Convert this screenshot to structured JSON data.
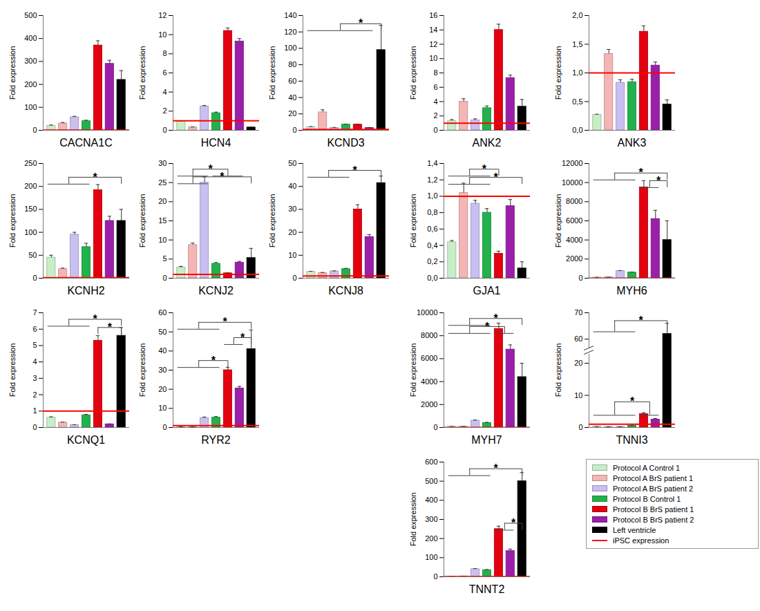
{
  "chart_data": {
    "type": "bar",
    "ylabel": "Fold expression",
    "series": [
      {
        "name": "Protocol A Control 1",
        "color": "#c8eec8"
      },
      {
        "name": "Protocol A BrS patient 1",
        "color": "#f5b5b5"
      },
      {
        "name": "Protocol A BrS patient 2",
        "color": "#c9bff0"
      },
      {
        "name": "Protocol B Control 1",
        "color": "#22b14c"
      },
      {
        "name": "Protocol B BrS patient 1",
        "color": "#e3000f"
      },
      {
        "name": "Protocol B BrS patient 2",
        "color": "#9b1fa8"
      },
      {
        "name": "Left ventricle",
        "color": "#000000"
      }
    ],
    "reference_line": {
      "name": "iPSC expression",
      "value": 1,
      "color": "#ff0000"
    },
    "panels": [
      {
        "xlabel": "CACNA1C",
        "ylim": [
          0,
          500
        ],
        "yticks": [
          0,
          100,
          200,
          300,
          400,
          500
        ],
        "values": [
          20,
          30,
          57,
          40,
          370,
          290,
          220
        ],
        "errors": [
          3,
          4,
          4,
          4,
          20,
          15,
          40
        ],
        "significance": []
      },
      {
        "xlabel": "HCN4",
        "ylim": [
          0,
          12
        ],
        "yticks": [
          0,
          2,
          4,
          6,
          8,
          10,
          12
        ],
        "values": [
          0.9,
          0.3,
          2.5,
          1.8,
          10.4,
          9.3,
          0.3
        ],
        "errors": [
          0.1,
          0.05,
          0.1,
          0.1,
          0.3,
          0.3,
          0.05
        ],
        "significance": []
      },
      {
        "xlabel": "KCND3",
        "ylim": [
          0,
          140
        ],
        "yticks": [
          0,
          20,
          40,
          60,
          80,
          100,
          120,
          140
        ],
        "values": [
          4,
          22,
          3,
          7,
          7,
          3,
          98
        ],
        "errors": [
          0.5,
          3,
          0.5,
          0.5,
          0.5,
          0.5,
          30
        ],
        "significance": [
          {
            "a": [
              0,
              5
            ],
            "b": [
              6,
              6
            ],
            "y": 130,
            "label": "*"
          }
        ]
      },
      {
        "xlabel": "ANK2",
        "ylim": [
          0,
          16
        ],
        "yticks": [
          0,
          2,
          4,
          6,
          8,
          10,
          12,
          14,
          16
        ],
        "values": [
          1.3,
          4,
          1.4,
          3.1,
          14,
          7.3,
          3.3
        ],
        "errors": [
          0.2,
          0.4,
          0.2,
          0.3,
          0.8,
          0.4,
          1
        ],
        "significance": []
      },
      {
        "xlabel": "ANK3",
        "ylim": [
          0,
          2
        ],
        "yticks": [
          {
            "value": 0,
            "label": "0,0"
          },
          {
            "value": 0.5,
            "label": "0,5"
          },
          {
            "value": 1,
            "label": "1,0"
          },
          {
            "value": 1.5,
            "label": "1,5"
          },
          {
            "value": 2,
            "label": "2,0"
          }
        ],
        "values": [
          0.27,
          1.33,
          0.83,
          0.84,
          1.72,
          1.13,
          0.45
        ],
        "errors": [
          0.01,
          0.08,
          0.05,
          0.05,
          0.1,
          0.06,
          0.08
        ],
        "significance": []
      },
      {
        "xlabel": "KCNH2",
        "ylim": [
          0,
          250
        ],
        "yticks": [
          0,
          50,
          100,
          150,
          200,
          250
        ],
        "values": [
          45,
          20,
          95,
          68,
          192,
          125,
          125
        ],
        "errors": [
          5,
          2,
          5,
          8,
          12,
          10,
          25
        ],
        "significance": [
          {
            "a": [
              0,
              3
            ],
            "b": [
              6,
              6
            ],
            "y": 220,
            "label": "*"
          }
        ]
      },
      {
        "xlabel": "KCNJ2",
        "ylim": [
          0,
          30
        ],
        "yticks": [
          0,
          5,
          10,
          15,
          20,
          25,
          30
        ],
        "values": [
          2.8,
          8.7,
          25,
          3.8,
          1.3,
          4.1,
          5.3
        ],
        "errors": [
          0.3,
          0.5,
          1.5,
          0.3,
          0.1,
          0.3,
          2.5
        ],
        "significance": [
          {
            "a": [
              0,
              2
            ],
            "b": [
              3,
              5
            ],
            "y": 28.5,
            "label": "*"
          },
          {
            "a": [
              0,
              2
            ],
            "b": [
              6,
              6
            ],
            "y": 26.5,
            "label": "*"
          }
        ]
      },
      {
        "xlabel": "KCNJ8",
        "ylim": [
          0,
          50
        ],
        "yticks": [
          0,
          10,
          20,
          30,
          40,
          50
        ],
        "values": [
          2.8,
          2.3,
          3,
          4,
          30,
          18,
          41.5
        ],
        "errors": [
          0.2,
          0.2,
          0.2,
          0.3,
          2,
          1,
          3
        ],
        "significance": [
          {
            "a": [
              0,
              3
            ],
            "b": [
              6,
              6
            ],
            "y": 47,
            "label": "*"
          }
        ]
      },
      {
        "xlabel": "GJA1",
        "ylim": [
          0,
          1.4
        ],
        "yticks": [
          {
            "value": 0,
            "label": "0,0"
          },
          {
            "value": 0.2,
            "label": "0,2"
          },
          {
            "value": 0.4,
            "label": "0,4"
          },
          {
            "value": 0.6,
            "label": "0,6"
          },
          {
            "value": 0.8,
            "label": "0,8"
          },
          {
            "value": 1,
            "label": "1,0"
          },
          {
            "value": 1.2,
            "label": "1,2"
          },
          {
            "value": 1.4,
            "label": "1,4"
          }
        ],
        "values": [
          0.44,
          1.04,
          0.91,
          0.8,
          0.3,
          0.88,
          0.12
        ],
        "errors": [
          0.02,
          0.12,
          0.04,
          0.05,
          0.03,
          0.08,
          0.08
        ],
        "significance": [
          {
            "a": [
              0,
              3
            ],
            "b": [
              4,
              4
            ],
            "y": 1.33,
            "label": "*"
          },
          {
            "a": [
              0,
              3
            ],
            "b": [
              6,
              6
            ],
            "y": 1.23,
            "label": "*"
          }
        ]
      },
      {
        "xlabel": "MYH6",
        "ylim": [
          0,
          12000
        ],
        "yticks": [
          0,
          2000,
          4000,
          6000,
          8000,
          10000,
          12000
        ],
        "values": [
          80,
          100,
          750,
          600,
          9500,
          6200,
          4000
        ],
        "errors": [
          10,
          10,
          50,
          50,
          700,
          900,
          2000
        ],
        "significance": [
          {
            "a": [
              0,
              3
            ],
            "b": [
              6,
              6
            ],
            "y": 11000,
            "label": "*"
          },
          {
            "a": [
              4,
              5
            ],
            "b": [
              6,
              6
            ],
            "y": 10200,
            "label": "*"
          }
        ]
      },
      {
        "xlabel": "KCNQ1",
        "ylim": [
          0,
          7
        ],
        "yticks": [
          0,
          1,
          2,
          3,
          4,
          5,
          6,
          7
        ],
        "values": [
          0.6,
          0.3,
          0.15,
          0.75,
          5.3,
          0.2,
          5.6
        ],
        "errors": [
          0.05,
          0.03,
          0.02,
          0.05,
          0.3,
          0.02,
          0.5
        ],
        "significance": [
          {
            "a": [
              0,
              3
            ],
            "b": [
              6,
              6
            ],
            "y": 6.6,
            "label": "*"
          },
          {
            "a": [
              4,
              4
            ],
            "b": [
              6,
              6
            ],
            "y": 6.1,
            "label": "*"
          }
        ]
      },
      {
        "xlabel": "RYR2",
        "ylim": [
          0,
          60
        ],
        "yticks": [
          0,
          10,
          20,
          30,
          40,
          50,
          60
        ],
        "values": [
          0.3,
          0.3,
          5,
          5.2,
          30,
          20.5,
          41
        ],
        "errors": [
          0.05,
          0.05,
          0.5,
          0.5,
          1.5,
          1,
          10
        ],
        "significance": [
          {
            "a": [
              0,
              3
            ],
            "b": [
              6,
              6
            ],
            "y": 55,
            "label": "*"
          },
          {
            "a": [
              4,
              5
            ],
            "b": [
              6,
              6
            ],
            "y": 47,
            "label": "*"
          },
          {
            "a": [
              0,
              3
            ],
            "b": [
              4,
              4
            ],
            "y": 35,
            "label": "*"
          }
        ]
      },
      {
        "xlabel": "MYH7",
        "ylim": [
          0,
          10000
        ],
        "yticks": [
          0,
          2000,
          4000,
          6000,
          8000,
          10000
        ],
        "values": [
          80,
          90,
          600,
          400,
          8600,
          6800,
          4400
        ],
        "errors": [
          10,
          10,
          50,
          50,
          500,
          400,
          1200
        ],
        "significance": [
          {
            "a": [
              0,
              3
            ],
            "b": [
              6,
              6
            ],
            "y": 9500,
            "label": "*"
          },
          {
            "a": [
              0,
              3
            ],
            "b": [
              4,
              5
            ],
            "y": 8800,
            "label": "*"
          }
        ]
      },
      {
        "xlabel": "TNNI3",
        "ylim": [
          0,
          70
        ],
        "axis_break": [
          20,
          60
        ],
        "yticks": [
          0,
          10,
          20,
          60,
          70
        ],
        "values": [
          0.3,
          0.2,
          0.2,
          0.6,
          4.2,
          2.5,
          62
        ],
        "errors": [
          0.02,
          0.02,
          0.02,
          0.05,
          0.4,
          0.3,
          4
        ],
        "significance": [
          {
            "a": [
              0,
              3
            ],
            "b": [
              6,
              6
            ],
            "y": 67,
            "label": "*"
          },
          {
            "a": [
              0,
              3
            ],
            "b": [
              4,
              5
            ],
            "y": 8,
            "label": "*"
          }
        ]
      },
      {
        "xlabel": "TNNT2",
        "ylim": [
          0,
          600
        ],
        "yticks": [
          0,
          100,
          200,
          300,
          400,
          500,
          600
        ],
        "values": [
          2,
          3,
          40,
          35,
          250,
          135,
          500
        ],
        "errors": [
          0.3,
          0.3,
          3,
          3,
          15,
          10,
          45
        ],
        "significance": [
          {
            "a": [
              0,
              3
            ],
            "b": [
              6,
              6
            ],
            "y": 565,
            "label": "*"
          },
          {
            "a": [
              4,
              5
            ],
            "b": [
              6,
              6
            ],
            "y": 280,
            "label": "*"
          }
        ]
      }
    ]
  }
}
